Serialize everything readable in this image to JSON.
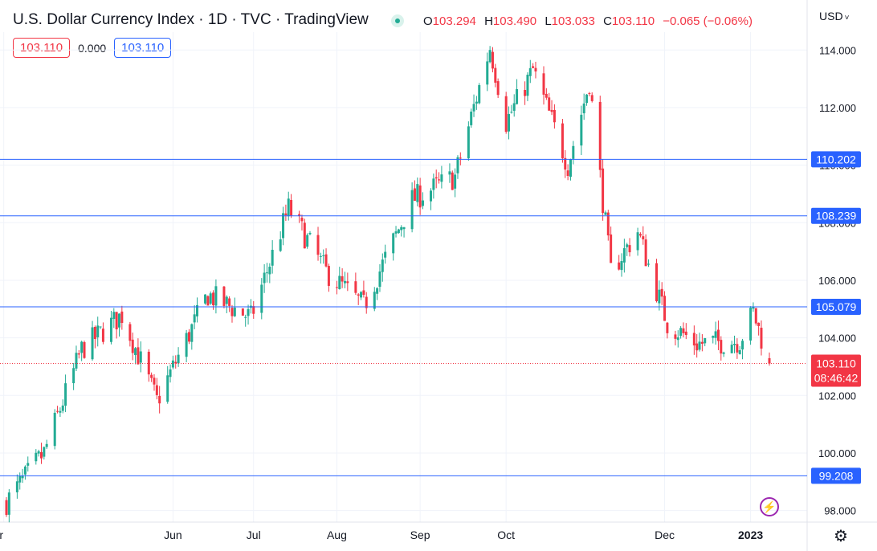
{
  "header": {
    "title": "U.S. Dollar Currency Index · 1D · TVC · TradingView",
    "ohlc": {
      "o_label": "O",
      "o_value": "103.294",
      "h_label": "H",
      "h_value": "103.490",
      "l_label": "L",
      "l_value": "103.033",
      "c_label": "C",
      "c_value": "103.110",
      "change": "−0.065 (−0.06%)"
    },
    "sell_price": "103.110",
    "spread": "0.000",
    "buy_price": "103.110",
    "currency": "USD",
    "currency_chevron": "˅"
  },
  "icons": {
    "bolt": "⚡",
    "settings": "⚙"
  },
  "colors": {
    "up": "#22ab94",
    "down": "#f23645",
    "level_line": "#2962ff",
    "level_label_bg": "#2962ff",
    "price_label_bg": "#f23645",
    "grid": "#f0f3fa",
    "text": "#131722"
  },
  "chart_data": {
    "type": "candlestick",
    "symbol": "U.S. Dollar Currency Index",
    "interval": "1D",
    "y_range": [
      97.6,
      114.9
    ],
    "y_ticks": [
      98.0,
      100.0,
      102.0,
      104.0,
      106.0,
      108.0,
      110.0,
      112.0,
      114.0
    ],
    "y_tick_labels": [
      "98.000",
      "100.000",
      "102.000",
      "104.000",
      "106.000",
      "108.000",
      "110.000",
      "112.000",
      "114.000"
    ],
    "x_tick_labels": [
      "Apr",
      "Jun",
      "Jul",
      "Aug",
      "Sep",
      "Oct",
      "Dec",
      "2023"
    ],
    "last_price": 103.11,
    "last_price_label": "103.110",
    "countdown": "08:46:42",
    "horizontal_levels": [
      {
        "value": 110.202,
        "label": "110.202"
      },
      {
        "value": 108.239,
        "label": "108.239"
      },
      {
        "value": 105.079,
        "label": "105.079"
      },
      {
        "value": 99.208,
        "label": "99.208"
      }
    ],
    "trend_anchors": [
      {
        "date": "2022-03-31",
        "close": 98.3
      },
      {
        "date": "2022-04-14",
        "close": 100.0
      },
      {
        "date": "2022-04-28",
        "close": 103.6
      },
      {
        "date": "2022-05-13",
        "close": 104.8
      },
      {
        "date": "2022-05-26",
        "close": 101.8
      },
      {
        "date": "2022-06-14",
        "close": 105.5
      },
      {
        "date": "2022-06-30",
        "close": 104.7
      },
      {
        "date": "2022-07-14",
        "close": 108.5
      },
      {
        "date": "2022-07-28",
        "close": 106.3
      },
      {
        "date": "2022-08-11",
        "close": 105.1
      },
      {
        "date": "2022-08-29",
        "close": 108.8
      },
      {
        "date": "2022-09-14",
        "close": 109.6
      },
      {
        "date": "2022-09-27",
        "close": 114.1
      },
      {
        "date": "2022-10-03",
        "close": 111.5
      },
      {
        "date": "2022-10-13",
        "close": 113.3
      },
      {
        "date": "2022-10-26",
        "close": 110.0
      },
      {
        "date": "2022-11-03",
        "close": 112.9
      },
      {
        "date": "2022-11-11",
        "close": 106.3
      },
      {
        "date": "2022-11-21",
        "close": 107.7
      },
      {
        "date": "2022-12-02",
        "close": 104.5
      },
      {
        "date": "2022-12-13",
        "close": 103.8
      },
      {
        "date": "2022-12-29",
        "close": 103.9
      },
      {
        "date": "2023-01-03",
        "close": 104.9
      },
      {
        "date": "2023-01-09",
        "close": 103.1
      }
    ]
  }
}
